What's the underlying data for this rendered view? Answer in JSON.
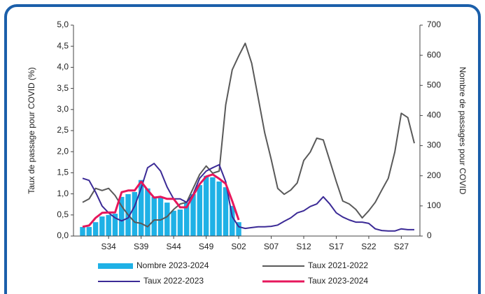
{
  "chart_data": {
    "type": "combo",
    "categories": [
      null,
      null,
      null,
      null,
      "S34",
      null,
      null,
      null,
      null,
      "S39",
      null,
      null,
      null,
      null,
      "S44",
      null,
      null,
      null,
      null,
      "S49",
      null,
      null,
      null,
      null,
      "S02",
      null,
      null,
      null,
      null,
      "S07",
      null,
      null,
      null,
      null,
      "S12",
      null,
      null,
      null,
      null,
      "S17",
      null,
      null,
      null,
      null,
      "S22",
      null,
      null,
      null,
      null,
      "S27",
      null,
      null
    ],
    "ylabel": "Taux de passage pour COVID (%)",
    "y2label": "Nombre de passages pour COVID",
    "ylim": [
      0,
      5
    ],
    "yticks": [
      {
        "value": 0,
        "label": "0,0"
      },
      {
        "value": 0.5,
        "label": "0,5"
      },
      {
        "value": 1,
        "label": "1,0"
      },
      {
        "value": 1.5,
        "label": "1,5"
      },
      {
        "value": 2,
        "label": "2,0"
      },
      {
        "value": 2.5,
        "label": "2,5"
      },
      {
        "value": 3,
        "label": "3,0"
      },
      {
        "value": 3.5,
        "label": "3,5"
      },
      {
        "value": 4,
        "label": "4,0"
      },
      {
        "value": 4.5,
        "label": "4,5"
      },
      {
        "value": 5,
        "label": "5,0"
      }
    ],
    "y2lim": [
      0,
      700
    ],
    "y2ticks": [
      0,
      100,
      200,
      300,
      400,
      500,
      600,
      700
    ],
    "series": [
      {
        "name": "Nombre 2023-2024",
        "type": "bar",
        "axis": "y2",
        "color": "#1fb1e6",
        "values": [
          30,
          30,
          46,
          65,
          70,
          74,
          130,
          139,
          146,
          186,
          158,
          130,
          130,
          111,
          84,
          88,
          111,
          139,
          169,
          200,
          195,
          181,
          162,
          100,
          46,
          null,
          null,
          null,
          null,
          null,
          null,
          null,
          null,
          null,
          null,
          null,
          null,
          null,
          null,
          null,
          null,
          null,
          null,
          null,
          null,
          null,
          null,
          null,
          null,
          null,
          null,
          null
        ]
      },
      {
        "name": "Taux 2021-2022",
        "type": "line",
        "color": "#595959",
        "values": [
          0.8,
          0.88,
          1.13,
          1.08,
          1.13,
          0.96,
          0.71,
          0.5,
          0.33,
          0.3,
          0.22,
          0.38,
          0.38,
          0.46,
          0.63,
          0.76,
          0.8,
          1.13,
          1.46,
          1.66,
          1.49,
          1.54,
          3.11,
          3.94,
          4.27,
          4.57,
          4.1,
          3.28,
          2.45,
          1.82,
          1.13,
          0.99,
          1.09,
          1.26,
          1.79,
          1.99,
          2.32,
          2.28,
          1.79,
          1.29,
          0.83,
          0.76,
          0.63,
          0.43,
          0.6,
          0.8,
          1.09,
          1.37,
          1.99,
          2.91,
          2.81,
          2.2
        ]
      },
      {
        "name": "Taux 2022-2023",
        "type": "line",
        "color": "#3b2a96",
        "values": [
          1.37,
          1.32,
          1.04,
          0.71,
          0.55,
          0.43,
          0.36,
          0.43,
          0.71,
          1.13,
          1.62,
          1.72,
          1.54,
          1.16,
          0.88,
          0.88,
          0.8,
          0.99,
          1.37,
          1.54,
          1.62,
          1.69,
          1.29,
          0.46,
          0.22,
          0.18,
          0.2,
          0.22,
          0.22,
          0.23,
          0.26,
          0.35,
          0.43,
          0.55,
          0.6,
          0.7,
          0.76,
          0.93,
          0.76,
          0.55,
          0.45,
          0.38,
          0.33,
          0.33,
          0.3,
          0.17,
          0.13,
          0.12,
          0.12,
          0.17,
          0.15,
          0.15
        ]
      },
      {
        "name": "Taux 2023-2024",
        "type": "line",
        "color": "#e6175c",
        "width": 3,
        "values": [
          0.22,
          0.25,
          0.43,
          0.55,
          0.56,
          0.56,
          1.04,
          1.08,
          1.08,
          1.29,
          1.09,
          0.91,
          0.93,
          0.88,
          0.88,
          0.68,
          0.68,
          0.96,
          1.23,
          1.41,
          1.46,
          1.36,
          1.24,
          0.83,
          0.38,
          null,
          null,
          null,
          null,
          null,
          null,
          null,
          null,
          null,
          null,
          null,
          null,
          null,
          null,
          null,
          null,
          null,
          null,
          null,
          null,
          null,
          null,
          null,
          null,
          null,
          null,
          null
        ]
      }
    ]
  }
}
